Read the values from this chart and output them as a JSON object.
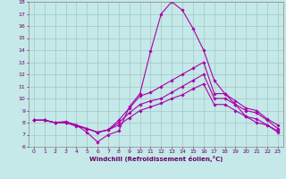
{
  "xlabel": "Windchill (Refroidissement éolien,°C)",
  "background_color": "#c5e8e8",
  "grid_color": "#a0c8c8",
  "line_color": "#aa00aa",
  "x": [
    0,
    1,
    2,
    3,
    4,
    5,
    6,
    7,
    8,
    9,
    10,
    11,
    12,
    13,
    14,
    15,
    16,
    17,
    18,
    19,
    20,
    21,
    22,
    23
  ],
  "series": [
    [
      8.2,
      8.2,
      8.0,
      8.1,
      7.8,
      7.2,
      6.4,
      7.0,
      7.3,
      9.3,
      10.4,
      13.9,
      17.0,
      18.0,
      17.3,
      15.8,
      14.0,
      11.5,
      10.4,
      9.5,
      8.5,
      8.0,
      7.8,
      7.3
    ],
    [
      8.2,
      8.2,
      8.0,
      8.0,
      7.7,
      7.5,
      7.2,
      7.4,
      8.2,
      9.2,
      10.2,
      10.5,
      11.0,
      11.5,
      12.0,
      12.5,
      13.0,
      10.4,
      10.4,
      9.8,
      9.2,
      9.0,
      8.3,
      7.8
    ],
    [
      8.2,
      8.2,
      8.0,
      8.0,
      7.8,
      7.5,
      7.2,
      7.4,
      8.0,
      8.8,
      9.5,
      9.8,
      10.0,
      10.5,
      11.0,
      11.5,
      12.0,
      10.0,
      10.0,
      9.5,
      9.0,
      8.8,
      8.2,
      7.5
    ],
    [
      8.2,
      8.2,
      8.0,
      8.0,
      7.8,
      7.5,
      7.2,
      7.4,
      7.8,
      8.4,
      9.0,
      9.3,
      9.6,
      10.0,
      10.3,
      10.8,
      11.2,
      9.5,
      9.5,
      9.0,
      8.5,
      8.3,
      7.8,
      7.2
    ]
  ],
  "ylim": [
    6,
    18
  ],
  "yticks": [
    6,
    7,
    8,
    9,
    10,
    11,
    12,
    13,
    14,
    15,
    16,
    17,
    18
  ],
  "xticks": [
    0,
    1,
    2,
    3,
    4,
    5,
    6,
    7,
    8,
    9,
    10,
    11,
    12,
    13,
    14,
    15,
    16,
    17,
    18,
    19,
    20,
    21,
    22,
    23
  ],
  "marker": "D",
  "markersize": 1.8,
  "linewidth": 0.8
}
